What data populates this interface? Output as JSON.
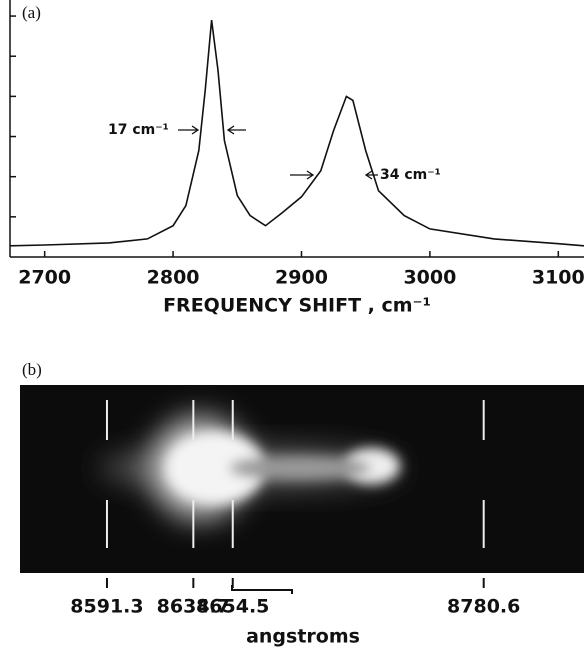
{
  "chart_data": [
    {
      "type": "line",
      "panel_label": "(a)",
      "x_label": "FREQUENCY SHIFT , cm⁻¹",
      "annotations": [
        "17 cm⁻¹",
        "34 cm⁻¹"
      ],
      "color": "#111111",
      "x": [
        2673,
        2700,
        2750,
        2780,
        2800,
        2810,
        2820,
        2825,
        2830,
        2835,
        2840,
        2850,
        2860,
        2872,
        2885,
        2900,
        2915,
        2925,
        2935,
        2940,
        2950,
        2960,
        2980,
        3000,
        3050,
        3100,
        3120
      ],
      "values": [
        0.28,
        0.3,
        0.35,
        0.45,
        0.78,
        1.28,
        2.65,
        4.15,
        5.9,
        4.65,
        2.9,
        1.53,
        1.03,
        0.78,
        1.1,
        1.5,
        2.15,
        3.15,
        4.0,
        3.9,
        2.65,
        1.65,
        1.03,
        0.7,
        0.45,
        0.33,
        0.28
      ],
      "xlim": [
        2673,
        3120
      ],
      "xticks": [
        2700,
        2800,
        2900,
        3000,
        3100
      ],
      "ylim": [
        0,
        6.4
      ],
      "yticks": [
        1,
        2,
        3,
        4,
        5,
        6
      ]
    },
    {
      "type": "spectrogram",
      "panel_label": "(b)",
      "x_label": "angstroms",
      "xlim": [
        8547.6,
        8831
      ],
      "xticks": [
        8591.3,
        8634.7,
        8654.5,
        8780.6
      ]
    }
  ]
}
